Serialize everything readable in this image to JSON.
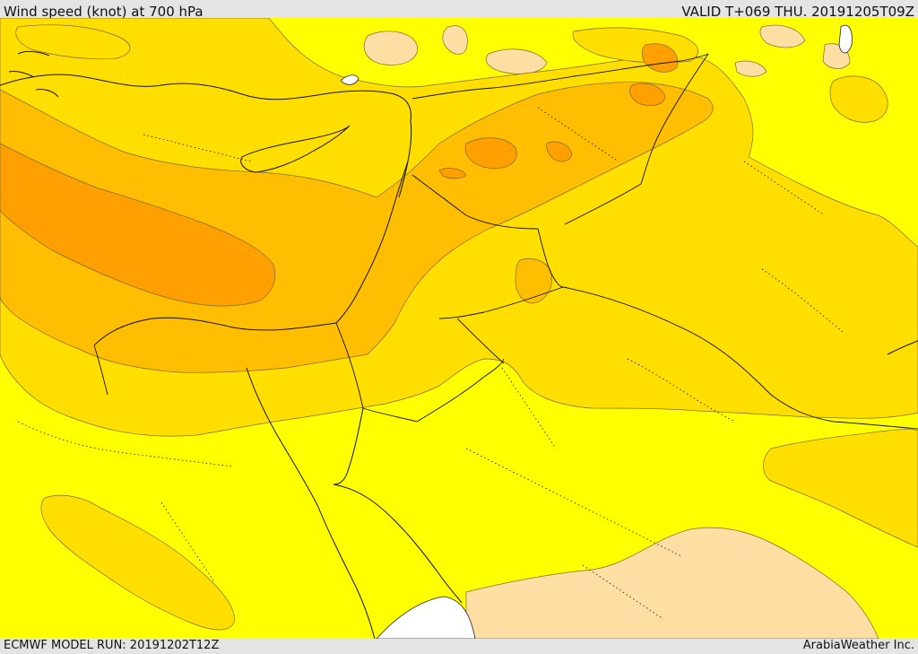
{
  "header": {
    "title": "Wind speed (knot) at 700 hPa",
    "valid_time": "VALID T+069 THU. 20191205T09Z"
  },
  "footer": {
    "model_run": "ECMWF MODEL RUN: 20191202T12Z",
    "credit": "ArabiaWeather Inc."
  },
  "map": {
    "variable": "Wind speed at 700 hPa",
    "colors": {
      "light": "#ffdea4",
      "level1": "#ffff00",
      "level2": "#ffde00",
      "level3": "#ffbe00",
      "level4": "#ffa000",
      "background": "#ffffff",
      "panel": "#e4e4e4"
    },
    "features": [
      "coastline",
      "country-borders",
      "province-borders",
      "speed-contours"
    ]
  }
}
